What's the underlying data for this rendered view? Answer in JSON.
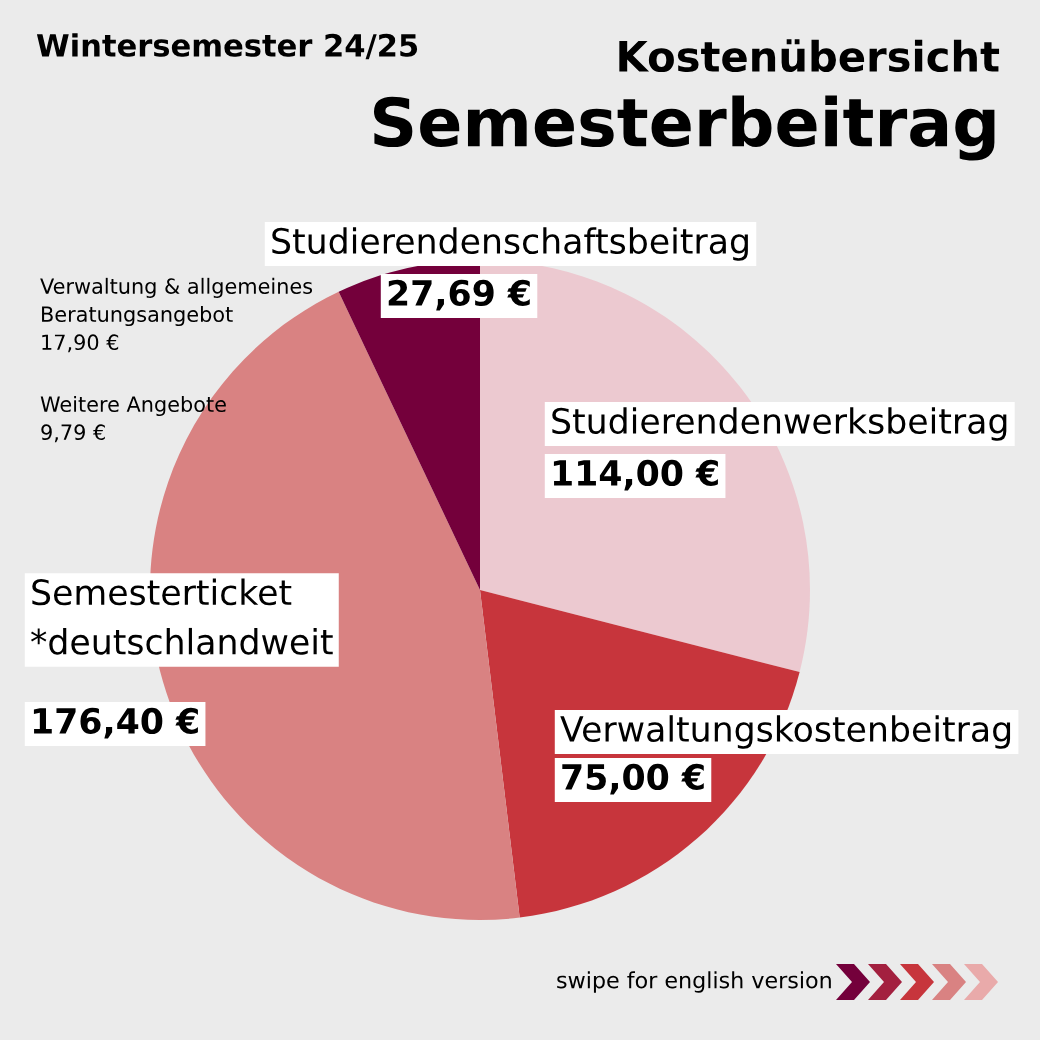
{
  "chart_data": {
    "type": "pie",
    "title": "Semesterbeitrag",
    "subtitle": "Kostenübersicht",
    "categories": [
      "Studierendenwerksbeitrag",
      "Verwaltungskostenbeitrag",
      "Semesterticket\n*deutschlandweit",
      "Studierendenschaftsbeitrag"
    ],
    "values": [
      114.0,
      75.0,
      176.4,
      27.69
    ],
    "value_labels": [
      "114,00 €",
      "75,00 €",
      "176,40 €",
      "27,69 €"
    ],
    "colors": [
      "#ecc9d0",
      "#c7353c",
      "#d98282",
      "#74003b"
    ],
    "annotations": [
      "Wintersemester 24/25",
      "Verwaltung & allgemeines\nBeratungsangebot\n17,90 €",
      "Weitere Angebote\n9,79 €",
      "swipe for english version"
    ],
    "legend": false
  }
}
